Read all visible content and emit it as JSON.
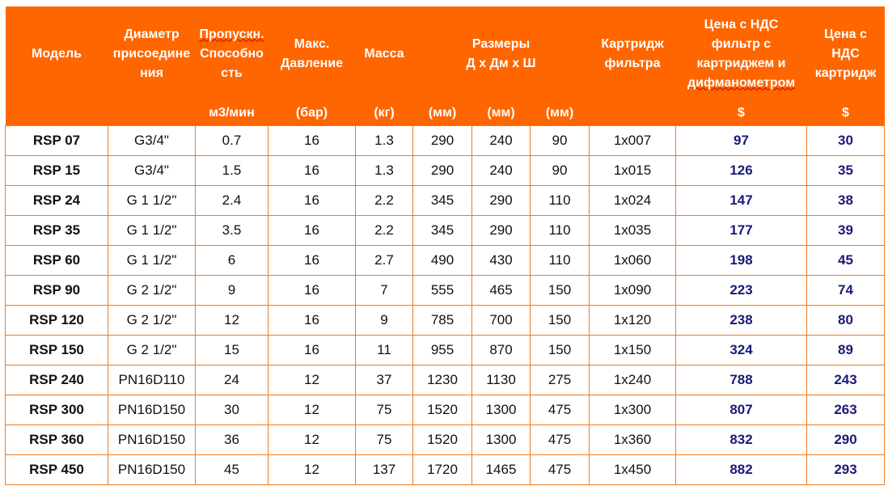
{
  "header": {
    "model": "Модель",
    "diameter": [
      "Диаметр",
      "присоедине",
      "ния"
    ],
    "capacity": [
      "Пропускн.",
      "Способно",
      "сть"
    ],
    "pressure": [
      "Макс.",
      "Давление"
    ],
    "mass": "Масса",
    "dimensions": [
      "Размеры",
      "Д х Дм х Ш"
    ],
    "cartridge": [
      "Картридж",
      "фильтра"
    ],
    "price_filter": [
      "Цена с НДС",
      "фильтр с",
      "картриджем и",
      "дифманометром"
    ],
    "price_cartridge": [
      "Цена с",
      "НДС",
      "картридж"
    ]
  },
  "units": [
    "",
    "",
    "м3/мин",
    "(бар)",
    "(кг)",
    "(мм)",
    "(мм)",
    "(мм)",
    "",
    "$",
    "$"
  ],
  "colors": {
    "header_bg": "#ff6600",
    "border": "#f07a1e",
    "price_text": "#1a1a7a"
  },
  "rows": [
    [
      "RSP 07",
      "G3/4\"",
      "0.7",
      "16",
      "1.3",
      "290",
      "240",
      "90",
      "1x007",
      "97",
      "30"
    ],
    [
      "RSP 15",
      "G3/4\"",
      "1.5",
      "16",
      "1.3",
      "290",
      "240",
      "90",
      "1x015",
      "126",
      "35"
    ],
    [
      "RSP 24",
      "G 1 1/2\"",
      "2.4",
      "16",
      "2.2",
      "345",
      "290",
      "110",
      "1x024",
      "147",
      "38"
    ],
    [
      "RSP 35",
      "G 1 1/2\"",
      "3.5",
      "16",
      "2.2",
      "345",
      "290",
      "110",
      "1x035",
      "177",
      "39"
    ],
    [
      "RSP 60",
      "G 1 1/2\"",
      "6",
      "16",
      "2.7",
      "490",
      "430",
      "110",
      "1x060",
      "198",
      "45"
    ],
    [
      "RSP 90",
      "G 2 1/2\"",
      "9",
      "16",
      "7",
      "555",
      "465",
      "150",
      "1x090",
      "223",
      "74"
    ],
    [
      "RSP 120",
      "G 2 1/2\"",
      "12",
      "16",
      "9",
      "785",
      "700",
      "150",
      "1x120",
      "238",
      "80"
    ],
    [
      "RSP 150",
      "G 2 1/2\"",
      "15",
      "16",
      "11",
      "955",
      "870",
      "150",
      "1x150",
      "324",
      "89"
    ],
    [
      "RSP 240",
      "PN16D110",
      "24",
      "12",
      "37",
      "1230",
      "1130",
      "275",
      "1x240",
      "788",
      "243"
    ],
    [
      "RSP 300",
      "PN16D150",
      "30",
      "12",
      "75",
      "1520",
      "1300",
      "475",
      "1x300",
      "807",
      "263"
    ],
    [
      "RSP 360",
      "PN16D150",
      "36",
      "12",
      "75",
      "1520",
      "1300",
      "475",
      "1x360",
      "832",
      "290"
    ],
    [
      "RSP 450",
      "PN16D150",
      "45",
      "12",
      "137",
      "1720",
      "1465",
      "475",
      "1x450",
      "882",
      "293"
    ]
  ]
}
